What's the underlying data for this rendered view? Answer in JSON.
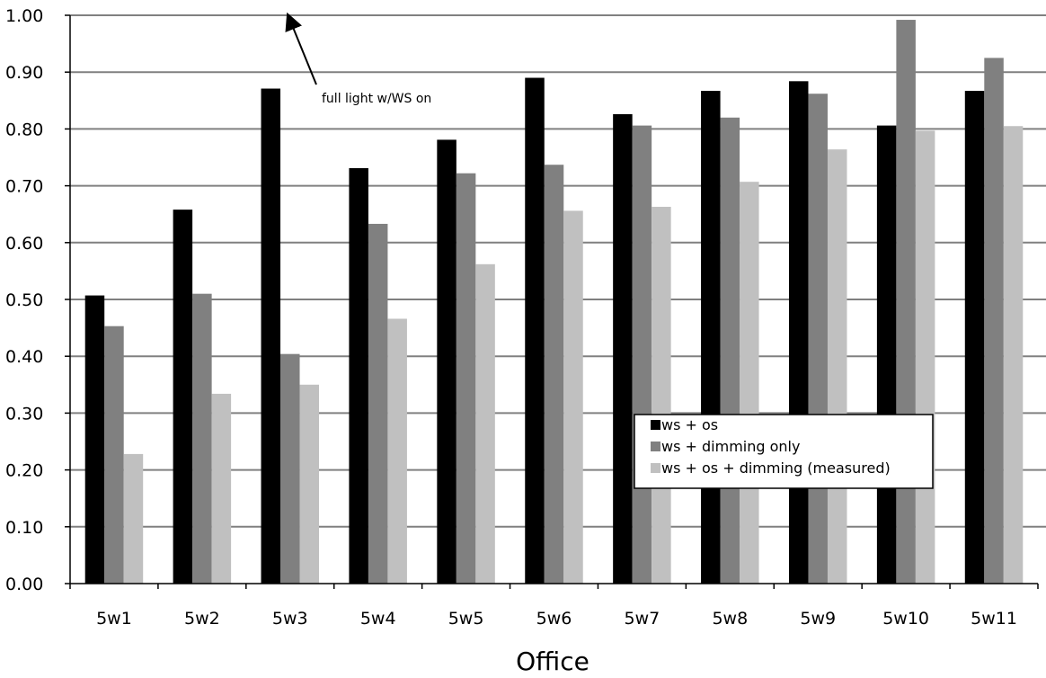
{
  "chart_data": {
    "type": "bar",
    "title": "",
    "xlabel": "Office",
    "ylabel": "",
    "ylim": [
      0,
      1
    ],
    "ytick_values": [
      0,
      0.1,
      0.2,
      0.3,
      0.4,
      0.5,
      0.6,
      0.7,
      0.8,
      0.9,
      1.0
    ],
    "ytick_labels": [
      "0.00",
      "0.10",
      "0.20",
      "0.30",
      "0.40",
      "0.50",
      "0.60",
      "0.70",
      "0.80",
      "0.90",
      "1.00"
    ],
    "categories": [
      "5w1",
      "5w2",
      "5w3",
      "5w4",
      "5w5",
      "5w6",
      "5w7",
      "5w8",
      "5w9",
      "5w10",
      "5w11"
    ],
    "grid": true,
    "legend_position": "lower-right",
    "series": [
      {
        "name": "ws + os",
        "color": "#000000",
        "values": [
          0.507,
          0.658,
          0.871,
          0.731,
          0.781,
          0.89,
          0.826,
          0.867,
          0.884,
          0.806,
          0.867
        ]
      },
      {
        "name": "ws + dimming only",
        "color": "#808080",
        "values": [
          0.453,
          0.51,
          0.404,
          0.633,
          0.722,
          0.737,
          0.806,
          0.82,
          0.862,
          0.992,
          0.925
        ]
      },
      {
        "name": "ws + os + dimming (measured)",
        "color": "#c0c0c0",
        "values": [
          0.228,
          0.334,
          0.35,
          0.466,
          0.562,
          0.656,
          0.663,
          0.707,
          0.764,
          0.797,
          0.805
        ]
      }
    ],
    "annotation": {
      "text": "full light w/WS on",
      "points_to_y": 1.0
    }
  }
}
